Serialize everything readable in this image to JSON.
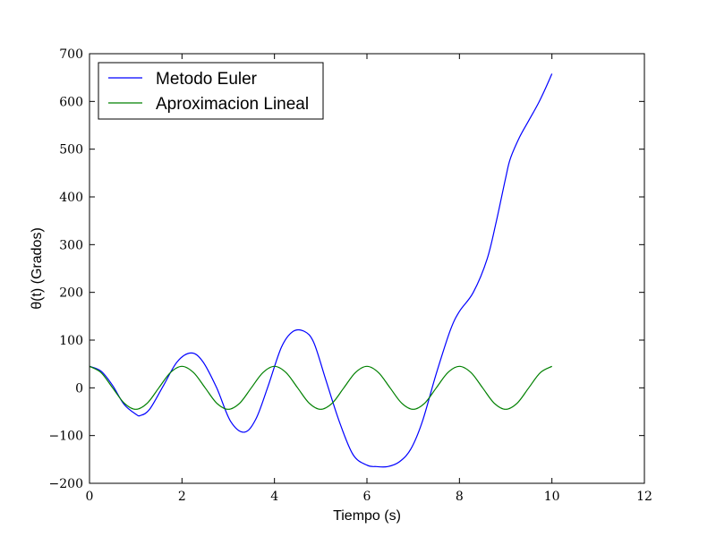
{
  "chart_data": {
    "type": "line",
    "title": "",
    "xlabel": "Tiempo (s)",
    "ylabel": "θ(t) (Grados)",
    "xlim": [
      0,
      12
    ],
    "ylim": [
      -200,
      700
    ],
    "x_ticks": [
      0,
      2,
      4,
      6,
      8,
      10,
      12
    ],
    "y_ticks": [
      -200,
      -100,
      0,
      100,
      200,
      300,
      400,
      500,
      600,
      700
    ],
    "x_tick_labels": [
      "0",
      "2",
      "4",
      "6",
      "8",
      "10",
      "12"
    ],
    "y_tick_labels": [
      "−200",
      "−100",
      "0",
      "100",
      "200",
      "300",
      "400",
      "500",
      "600",
      "700"
    ],
    "grid": false,
    "legend_placement": "top-left",
    "series": [
      {
        "name": "Metodo Euler",
        "color": "#0000ff",
        "x": [
          0,
          0.25,
          0.5,
          0.75,
          1.0,
          1.1,
          1.3,
          1.6,
          1.9,
          2.2,
          2.45,
          2.75,
          3.05,
          3.35,
          3.6,
          3.85,
          4.15,
          4.4,
          4.65,
          4.85,
          5.1,
          5.4,
          5.7,
          6.0,
          6.2,
          6.45,
          6.7,
          6.95,
          7.2,
          7.5,
          7.8,
          8.0,
          8.3,
          8.6,
          8.8,
          9.0,
          9.1,
          9.3,
          9.5,
          9.7,
          9.85,
          10.0
        ],
        "y": [
          45,
          35,
          5,
          -35,
          -55,
          -58,
          -45,
          5,
          55,
          73,
          55,
          0,
          -70,
          -93,
          -65,
          0,
          85,
          118,
          118,
          95,
          20,
          -70,
          -140,
          -162,
          -165,
          -165,
          -155,
          -128,
          -70,
          30,
          120,
          160,
          200,
          270,
          350,
          440,
          480,
          525,
          560,
          595,
          625,
          658
        ]
      },
      {
        "name": "Aproximacion Lineal",
        "color": "#008000",
        "x": [
          0,
          0.25,
          0.5,
          0.75,
          1.0,
          1.25,
          1.5,
          1.75,
          2.0,
          2.25,
          2.5,
          2.75,
          3.0,
          3.25,
          3.5,
          3.75,
          4.0,
          4.25,
          4.5,
          4.75,
          5.0,
          5.25,
          5.5,
          5.75,
          6.0,
          6.25,
          6.5,
          6.75,
          7.0,
          7.25,
          7.5,
          7.75,
          8.0,
          8.25,
          8.5,
          8.75,
          9.0,
          9.25,
          9.5,
          9.75,
          10.0
        ],
        "y": [
          45,
          32,
          0,
          -32,
          -45,
          -32,
          0,
          32,
          45,
          32,
          0,
          -32,
          -45,
          -32,
          0,
          32,
          45,
          32,
          0,
          -32,
          -45,
          -32,
          0,
          32,
          45,
          32,
          0,
          -32,
          -45,
          -32,
          0,
          32,
          45,
          32,
          0,
          -32,
          -45,
          -32,
          0,
          32,
          45
        ]
      }
    ]
  }
}
